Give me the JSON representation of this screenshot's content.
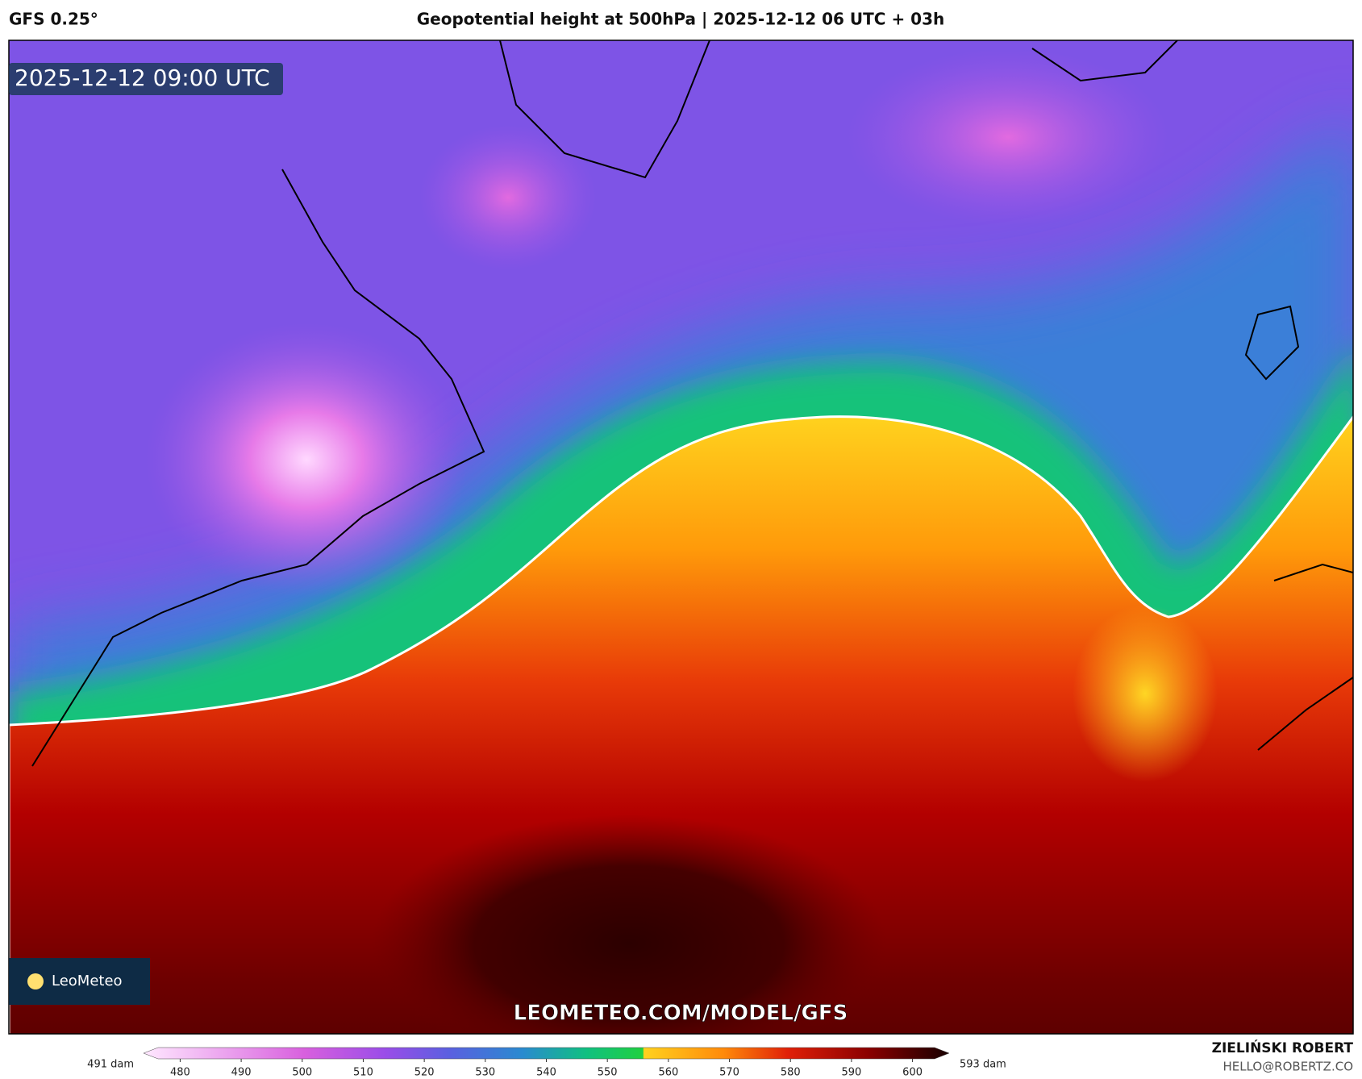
{
  "header": {
    "model": "GFS 0.25°",
    "title": "Geopotential height at 500hPa | 2025-12-12 06 UTC + 03h"
  },
  "map": {
    "valid_time": "2025-12-12 09:00 UTC",
    "watermark": "LEOMETEO.COM/MODEL/GFS",
    "logo": "LeoMeteo"
  },
  "colorbar": {
    "min_label": "491 dam",
    "max_label": "593 dam",
    "range": [
      474,
      606
    ],
    "ticks": [
      480,
      490,
      500,
      510,
      520,
      530,
      540,
      550,
      560,
      570,
      580,
      590,
      600
    ]
  },
  "credits": {
    "author": "ZIELIŃSKI ROBERT",
    "email": "HELLO@ROBERTZ.CO"
  }
}
